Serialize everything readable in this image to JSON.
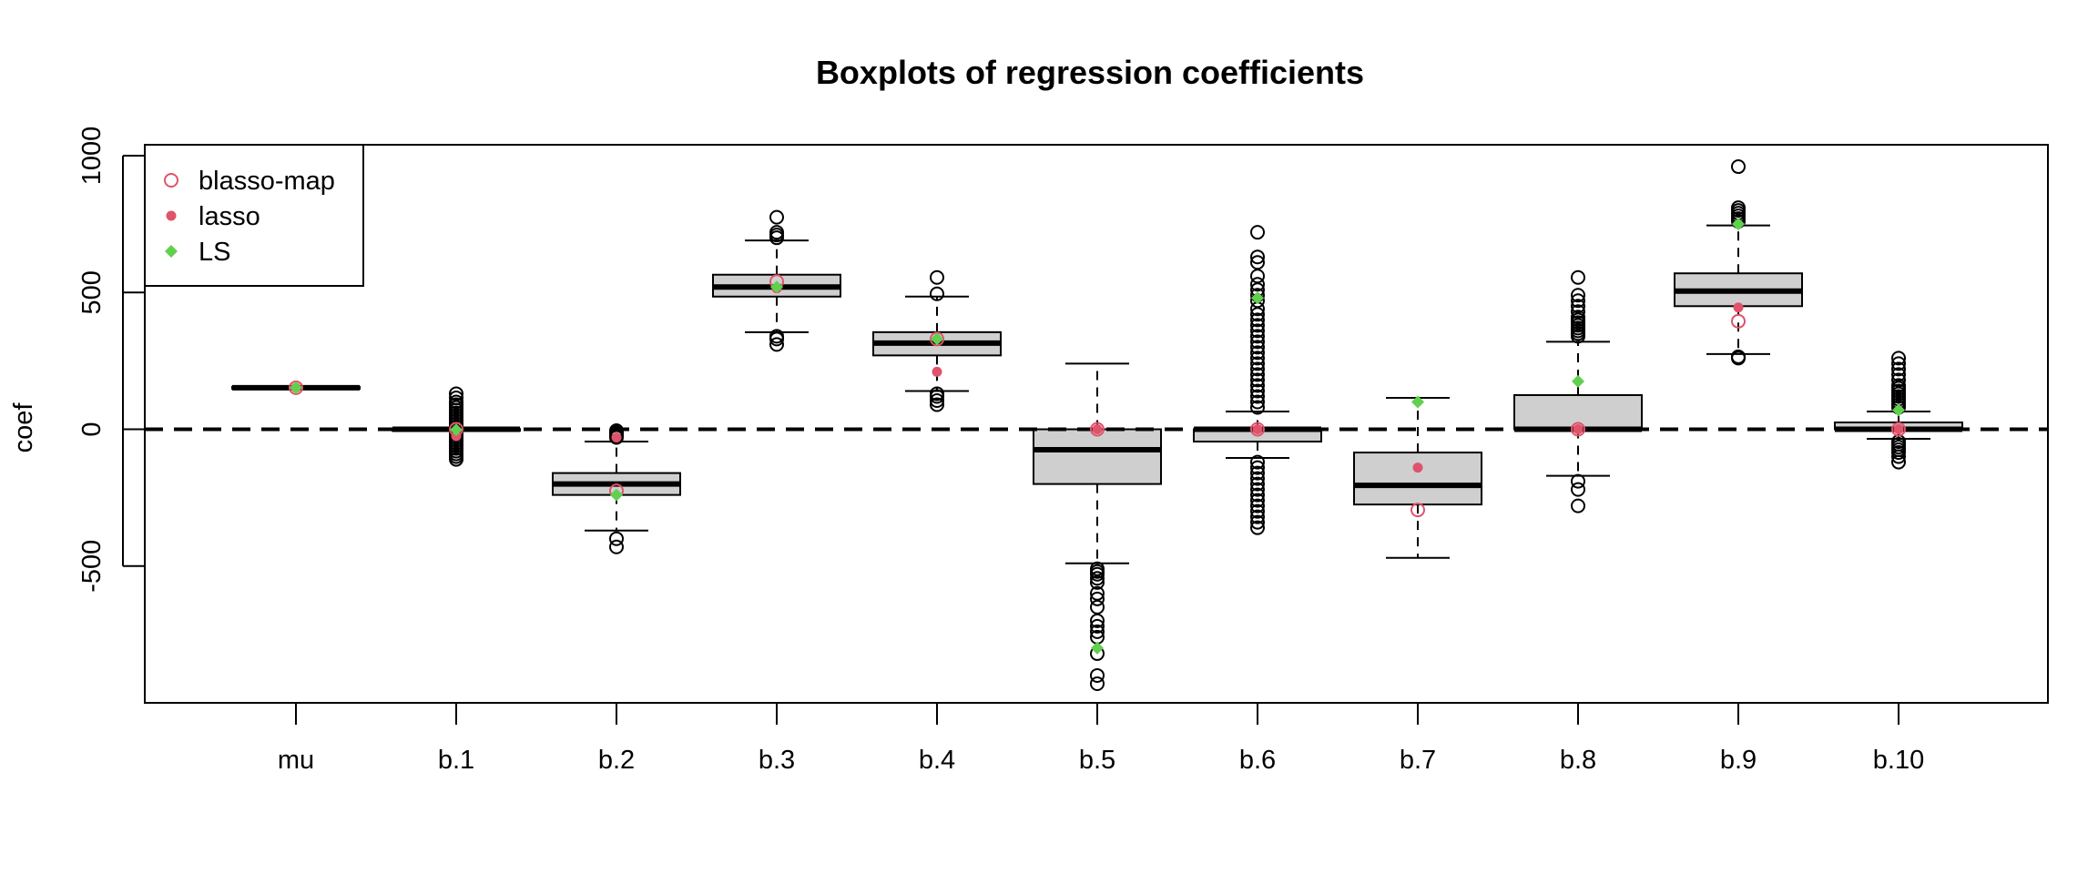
{
  "chart_data": {
    "type": "boxplot",
    "title": "Boxplots of regression coefficients",
    "xlabel": "",
    "ylabel": "coef",
    "ylim": [
      -1000,
      1040
    ],
    "y_ticks": [
      -500,
      0,
      500,
      1000
    ],
    "reference_line": {
      "y": 0,
      "style": "dashed"
    },
    "categories": [
      "mu",
      "b.1",
      "b.2",
      "b.3",
      "b.4",
      "b.5",
      "b.6",
      "b.7",
      "b.8",
      "b.9",
      "b.10"
    ],
    "boxes": [
      {
        "category": "mu",
        "q1": 150,
        "median": 152,
        "q3": 155,
        "whisker_low": 148,
        "whisker_high": 156,
        "outliers": []
      },
      {
        "category": "b.1",
        "q1": -1,
        "median": 0,
        "q3": 1,
        "whisker_low": -2,
        "whisker_high": 2,
        "outliers": [
          130,
          115,
          100,
          90,
          80,
          70,
          60,
          50,
          40,
          30,
          20,
          10,
          -10,
          -20,
          -30,
          -40,
          -50,
          -60,
          -70,
          -80,
          -90,
          -100,
          -110
        ]
      },
      {
        "category": "b.2",
        "q1": -240,
        "median": -200,
        "q3": -160,
        "whisker_low": -370,
        "whisker_high": -45,
        "outliers": [
          -5,
          -10,
          -15,
          -20,
          -25,
          -30,
          -400,
          -430
        ]
      },
      {
        "category": "b.3",
        "q1": 485,
        "median": 520,
        "q3": 565,
        "whisker_low": 355,
        "whisker_high": 690,
        "outliers": [
          775,
          720,
          710,
          700,
          340,
          330,
          310
        ]
      },
      {
        "category": "b.4",
        "q1": 270,
        "median": 315,
        "q3": 355,
        "whisker_low": 140,
        "whisker_high": 485,
        "outliers": [
          555,
          495,
          130,
          120,
          105,
          90
        ]
      },
      {
        "category": "b.5",
        "q1": -200,
        "median": -75,
        "q3": 0,
        "whisker_low": -490,
        "whisker_high": 240,
        "outliers": [
          -510,
          -520,
          -530,
          -545,
          -560,
          -600,
          -620,
          -650,
          -700,
          -720,
          -740,
          -760,
          -820,
          -900,
          -930
        ]
      },
      {
        "category": "b.6",
        "q1": -45,
        "median": 0,
        "q3": 0,
        "whisker_low": -105,
        "whisker_high": 65,
        "outliers": [
          720,
          630,
          610,
          560,
          530,
          510,
          490,
          470,
          440,
          420,
          400,
          380,
          360,
          340,
          320,
          300,
          280,
          260,
          240,
          220,
          200,
          180,
          160,
          140,
          120,
          100,
          80,
          -120,
          -140,
          -160,
          -180,
          -200,
          -220,
          -240,
          -260,
          -280,
          -300,
          -320,
          -340,
          -360
        ]
      },
      {
        "category": "b.7",
        "q1": -275,
        "median": -205,
        "q3": -85,
        "whisker_low": -470,
        "whisker_high": 115,
        "outliers": []
      },
      {
        "category": "b.8",
        "q1": 0,
        "median": 0,
        "q3": 125,
        "whisker_low": -170,
        "whisker_high": 320,
        "outliers": [
          555,
          490,
          470,
          450,
          430,
          410,
          400,
          390,
          380,
          370,
          360,
          350,
          340,
          -190,
          -220,
          -280
        ]
      },
      {
        "category": "b.9",
        "q1": 450,
        "median": 505,
        "q3": 570,
        "whisker_low": 275,
        "whisker_high": 745,
        "outliers": [
          960,
          810,
          800,
          790,
          780,
          770,
          760,
          265,
          260
        ]
      },
      {
        "category": "b.10",
        "q1": 0,
        "median": 0,
        "q3": 25,
        "whisker_low": -35,
        "whisker_high": 65,
        "outliers": [
          260,
          240,
          220,
          200,
          180,
          160,
          150,
          140,
          130,
          120,
          110,
          100,
          90,
          80,
          -45,
          -55,
          -65,
          -75,
          -85,
          -100,
          -120
        ]
      }
    ],
    "series": [
      {
        "name": "blasso-map",
        "marker": "open-circle",
        "color": "#DF536B",
        "values": [
          152,
          0,
          -225,
          540,
          330,
          0,
          0,
          -295,
          0,
          395,
          0
        ]
      },
      {
        "name": "lasso",
        "marker": "filled-circle",
        "color": "#DF536B",
        "values": [
          152,
          -25,
          -30,
          515,
          210,
          0,
          0,
          -140,
          0,
          445,
          0
        ]
      },
      {
        "name": "LS",
        "marker": "filled-diamond",
        "color": "#61D04F",
        "values": [
          152,
          -2,
          -240,
          520,
          330,
          -800,
          480,
          100,
          175,
          750,
          70
        ]
      }
    ],
    "legend": {
      "position": "top-left"
    },
    "grid": false
  }
}
